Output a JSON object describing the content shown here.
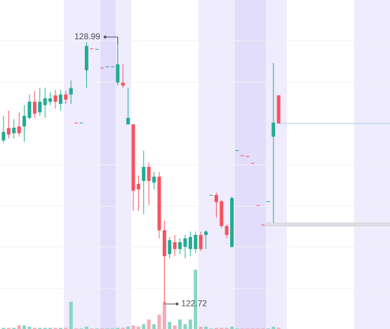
{
  "chart_data": {
    "type": "candlestick",
    "open": [
      126.56,
      126.85,
      126.73,
      126.89,
      126.89,
      127.09,
      127.47,
      127.22,
      127.39,
      127.47,
      127.62,
      127.42,
      127.64,
      127.64,
      126.98,
      126.97,
      128.21,
      128.72,
      128.7,
      128.27,
      128.29,
      128.3,
      127.92,
      127.92,
      126.94,
      126.94,
      125.54,
      125.61,
      125.94,
      125.57,
      125.71,
      124.45,
      123.89,
      124.17,
      124.01,
      124.06,
      124.01,
      124.01,
      124.34,
      124.34,
      125.27,
      125.28,
      125.13,
      124.55,
      124.06,
      126.32,
      126.21,
      126.19,
      126.03,
      125.04,
      124.58,
      125.12,
      126.65,
      127.62
    ],
    "high": [
      127.14,
      127.26,
      127.06,
      127.22,
      127.39,
      127.64,
      127.72,
      127.8,
      127.8,
      127.69,
      127.75,
      127.75,
      127.72,
      127.97,
      126.98,
      126.98,
      128.87,
      128.72,
      128.71,
      128.27,
      128.3,
      128.3,
      128.99,
      128.35,
      127.8,
      126.94,
      125.74,
      126.32,
      126.04,
      125.82,
      125.82,
      124.67,
      124.29,
      124.34,
      124.26,
      124.34,
      124.42,
      124.42,
      124.42,
      124.45,
      125.28,
      125.33,
      125.16,
      124.58,
      125.24,
      126.33,
      126.21,
      126.19,
      126.03,
      125.04,
      124.58,
      125.13,
      128.38,
      127.62
    ],
    "low": [
      126.51,
      126.61,
      126.61,
      126.65,
      126.53,
      127.06,
      127.09,
      127.14,
      127.09,
      127.39,
      127.31,
      127.26,
      127.42,
      127.42,
      126.97,
      126.97,
      127.8,
      128.71,
      128.7,
      128.26,
      128.29,
      128.3,
      127.85,
      127.8,
      126.93,
      124.91,
      124.91,
      124.83,
      125.05,
      125.41,
      124.26,
      122.72,
      123.79,
      123.84,
      123.89,
      123.79,
      123.84,
      123.92,
      123.96,
      124.01,
      125.27,
      124.75,
      124.5,
      124.26,
      124.04,
      126.32,
      126.2,
      126.18,
      126.02,
      125.03,
      124.57,
      125.12,
      124.62,
      126.96
    ],
    "close": [
      126.76,
      126.7,
      126.86,
      126.73,
      127.14,
      127.47,
      127.19,
      127.47,
      127.55,
      127.55,
      127.47,
      127.64,
      127.52,
      127.79,
      126.97,
      126.98,
      128.78,
      128.71,
      128.71,
      128.26,
      128.3,
      128.3,
      128.35,
      127.85,
      127.09,
      125.38,
      125.41,
      125.94,
      125.61,
      125.71,
      124.45,
      123.84,
      124.22,
      124.01,
      124.17,
      124.26,
      124.29,
      124.34,
      124.01,
      124.42,
      125.28,
      125.11,
      124.55,
      124.34,
      125.21,
      126.33,
      126.2,
      126.18,
      126.02,
      125.03,
      124.57,
      125.13,
      126.98,
      126.96
    ],
    "volume": [
      1,
      1,
      1,
      3,
      3,
      2,
      1,
      1,
      1,
      1,
      1,
      1,
      1,
      23,
      0.5,
      0.5,
      2,
      0.5,
      0.5,
      0.5,
      0.5,
      0.5,
      1,
      1,
      2,
      3,
      2,
      4,
      8,
      4,
      12,
      23,
      6,
      3,
      8,
      4,
      8,
      50,
      2,
      2,
      0.5,
      1,
      1,
      1,
      2,
      0.5,
      0.5,
      0.5,
      0.5,
      0.5,
      0.5,
      0.5,
      2,
      1
    ],
    "ylim": [
      122.13,
      129.86
    ],
    "vlim": [
      0,
      100
    ],
    "up_color": "#22ab94",
    "down_color": "#f7525f",
    "volume_up_color": "#88d6c3",
    "volume_down_color": "#f7aab3"
  }
}
